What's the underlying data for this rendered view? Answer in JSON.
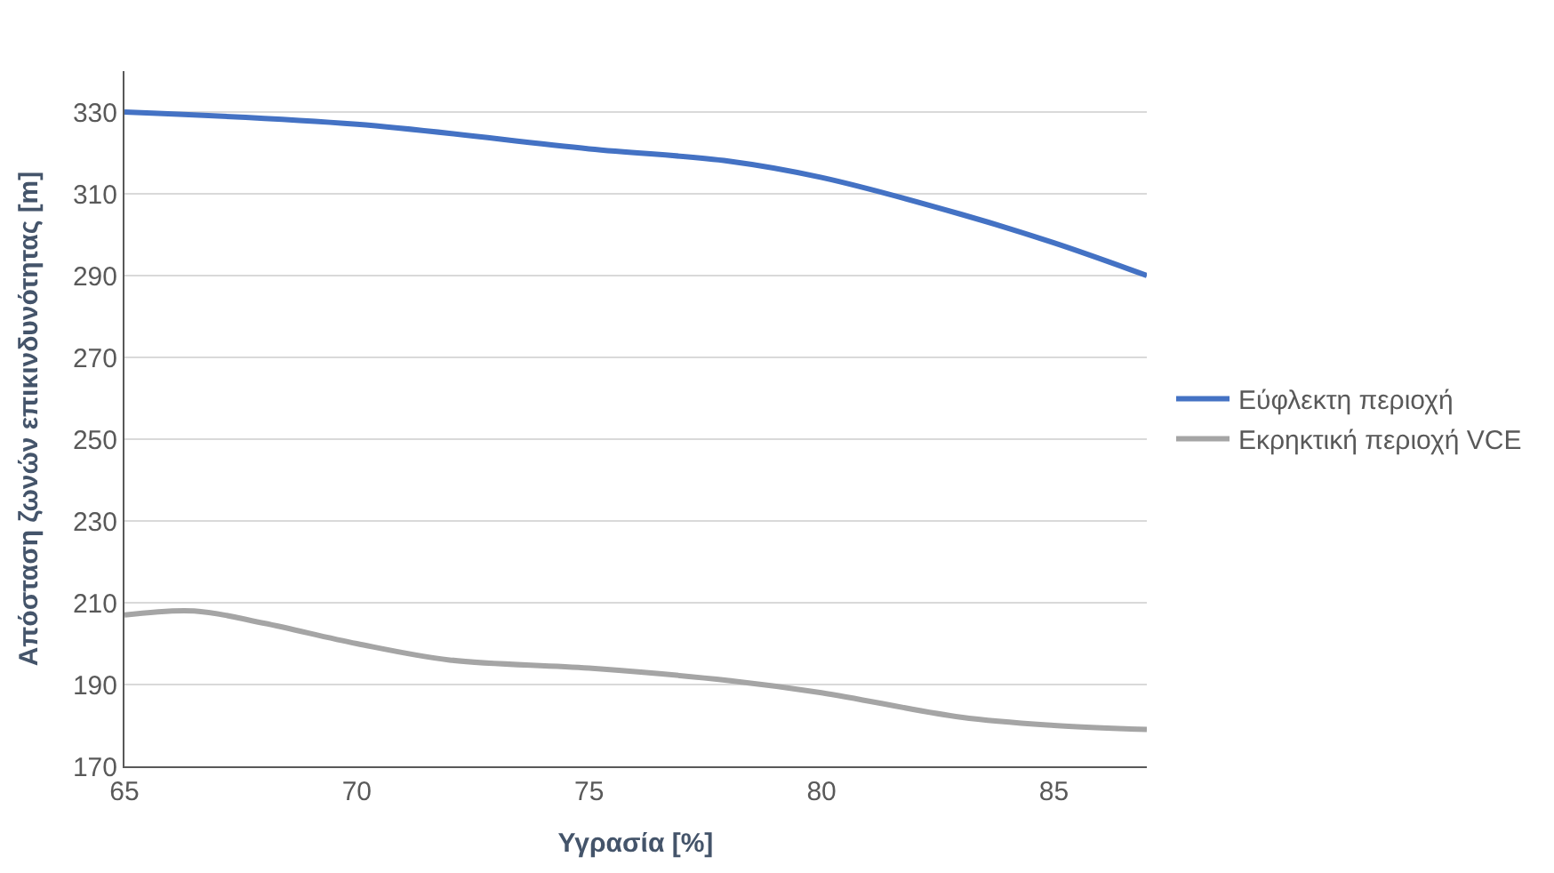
{
  "chart_data": {
    "type": "line",
    "xlabel": "Υγρασία [%]",
    "ylabel": "Απόσταση ζωνών επικινδυνότητας [m]",
    "xlim": [
      65,
      87
    ],
    "xticks": [
      65,
      70,
      75,
      80,
      85
    ],
    "ylim": [
      170,
      340
    ],
    "yticks": [
      170,
      190,
      210,
      230,
      250,
      270,
      290,
      310,
      330
    ],
    "grid": "y",
    "legend": "right",
    "marker": "none",
    "line_style": "solid",
    "series": [
      {
        "name": "Εύφλεκτη περιοχή",
        "color": "#4472c4",
        "x": [
          65,
          70,
          75,
          78,
          80,
          83,
          85,
          87
        ],
        "values": [
          330,
          327,
          321,
          318,
          314,
          305,
          298,
          290
        ]
      },
      {
        "name": "Εκρηκτική περιοχή VCE",
        "color": "#a5a5a5",
        "x": [
          65,
          66.5,
          68,
          70,
          72,
          75,
          78,
          80,
          83,
          85,
          87
        ],
        "values": [
          207,
          208,
          205,
          200,
          196,
          194,
          191,
          188,
          182,
          180,
          179
        ]
      }
    ]
  }
}
